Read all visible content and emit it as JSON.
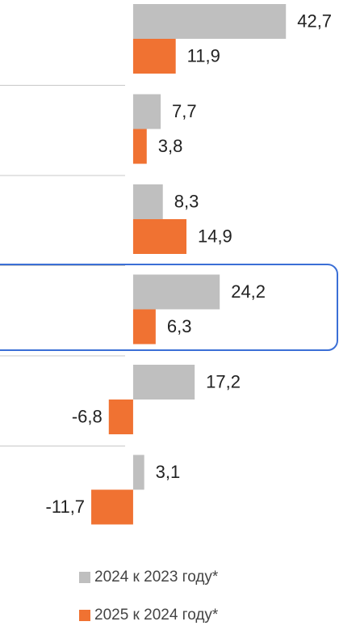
{
  "chart_data": {
    "type": "bar",
    "orientation": "horizontal",
    "categories": [
      null,
      null,
      null,
      null,
      null,
      null
    ],
    "series": [
      {
        "name": "2024 к 2023 году*",
        "color": "#bfbfbf",
        "values": [
          42.7,
          7.7,
          8.3,
          24.2,
          17.2,
          3.1
        ],
        "value_labels": [
          "42,7",
          "7,7",
          "8,3",
          "24,2",
          "17,2",
          "3,1"
        ]
      },
      {
        "name": "2025 к 2024 году*",
        "color": "#f07232",
        "values": [
          11.9,
          3.8,
          14.9,
          6.3,
          -6.8,
          -11.7
        ],
        "value_labels": [
          "11,9",
          "3,8",
          "14,9",
          "6,3",
          "-6,8",
          "-11,7"
        ]
      }
    ],
    "xlim": [
      -37.2,
      63.4
    ]
  }
}
